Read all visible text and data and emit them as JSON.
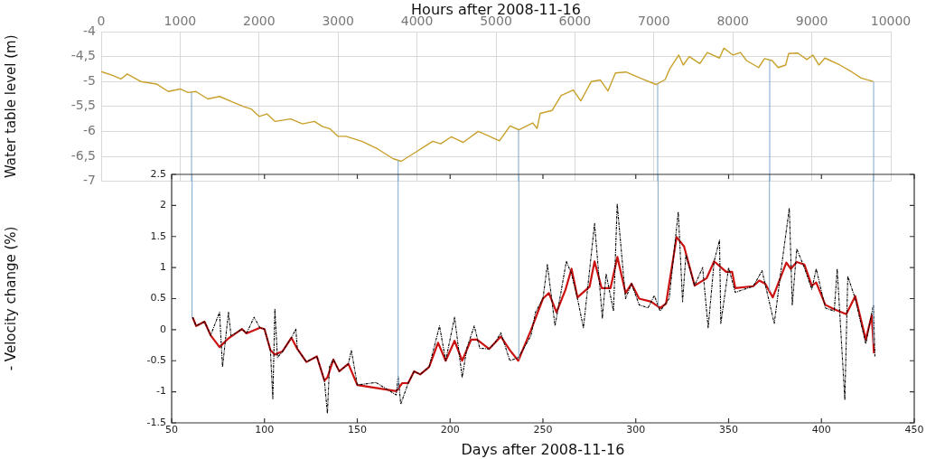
{
  "chart_data": [
    {
      "type": "line",
      "xlabel": "Hours after 2008-11-16",
      "ylabel": "Water table level (m)",
      "xlim": [
        0,
        10000
      ],
      "xticks": [
        0,
        1000,
        2000,
        3000,
        4000,
        5000,
        6000,
        7000,
        8000,
        9000,
        10000
      ],
      "ylim": [
        -7,
        -4
      ],
      "yticks": [
        {
          "value": -7,
          "label": "-7"
        },
        {
          "value": -6.5,
          "label": "-6,5"
        },
        {
          "value": -6,
          "label": "-6"
        },
        {
          "value": -5.5,
          "label": "-5,5"
        },
        {
          "value": -5,
          "label": "-5"
        },
        {
          "value": -4.5,
          "label": "-4,5"
        },
        {
          "value": -4,
          "label": "-4"
        }
      ],
      "grid": true,
      "series": [
        {
          "color": "#c8a02a",
          "x": [
            0,
            150,
            250,
            330,
            500,
            700,
            850,
            1000,
            1100,
            1200,
            1350,
            1500,
            1650,
            1800,
            1900,
            2000,
            2100,
            2200,
            2400,
            2550,
            2700,
            2800,
            2900,
            3000,
            3100,
            3300,
            3500,
            3700,
            3800,
            3900,
            4000,
            4100,
            4200,
            4300,
            4433,
            4586,
            4776,
            4930,
            5044,
            5178,
            5292,
            5464,
            5521,
            5560,
            5712,
            5826,
            5979,
            6074,
            6208,
            6323,
            6418,
            6513,
            6647,
            6838,
            7028,
            7143,
            7200,
            7315,
            7372,
            7448,
            7582,
            7677,
            7830,
            7887,
            8002,
            8097,
            8173,
            8326,
            8402,
            8497,
            8574,
            8669,
            8707,
            8822,
            8937,
            9013,
            9089,
            9166,
            9356,
            9509,
            9624,
            9777
          ],
          "values": [
            -4.8,
            -4.88,
            -4.95,
            -4.85,
            -5.0,
            -5.05,
            -5.2,
            -5.15,
            -5.22,
            -5.2,
            -5.35,
            -5.3,
            -5.4,
            -5.5,
            -5.55,
            -5.7,
            -5.65,
            -5.8,
            -5.75,
            -5.85,
            -5.8,
            -5.9,
            -5.95,
            -6.1,
            -6.1,
            -6.2,
            -6.35,
            -6.55,
            -6.6,
            -6.5,
            -6.4,
            -6.3,
            -6.2,
            -6.25,
            -6.11,
            -6.22,
            -6.0,
            -6.11,
            -6.19,
            -5.89,
            -5.97,
            -5.83,
            -5.94,
            -5.64,
            -5.58,
            -5.28,
            -5.17,
            -5.39,
            -5.0,
            -4.97,
            -5.19,
            -4.83,
            -4.81,
            -4.94,
            -5.06,
            -4.96,
            -4.75,
            -4.47,
            -4.67,
            -4.5,
            -4.64,
            -4.42,
            -4.53,
            -4.33,
            -4.47,
            -4.42,
            -4.58,
            -4.72,
            -4.54,
            -4.58,
            -4.72,
            -4.67,
            -4.44,
            -4.43,
            -4.56,
            -4.47,
            -4.67,
            -4.53,
            -4.67,
            -4.81,
            -4.93,
            -5.0
          ]
        }
      ],
      "ref_lines": [
        {
          "axis": "x",
          "value": 1144,
          "color": "#7fa7c9"
        },
        {
          "axis": "x",
          "value": 3761,
          "color": "#7fa7c9"
        },
        {
          "axis": "x",
          "value": 5286,
          "color": "#7fa7c9"
        },
        {
          "axis": "x",
          "value": 7048,
          "color": "#7fa7c9"
        },
        {
          "axis": "x",
          "value": 8467,
          "color": "#7fa7c9"
        },
        {
          "axis": "x",
          "value": 9783,
          "color": "#7fa7c9"
        }
      ]
    },
    {
      "type": "line",
      "xlabel": "Days after 2008-11-16",
      "ylabel": "- Velocity change (%)",
      "xlim": [
        50,
        450
      ],
      "xticks": [
        50,
        100,
        150,
        200,
        250,
        300,
        350,
        400,
        450
      ],
      "ylim": [
        -1.5,
        2.5
      ],
      "yticks": [
        -1.5,
        -1,
        -0.5,
        0,
        0.5,
        1,
        1.5,
        2,
        2.5
      ],
      "grid": false,
      "series": [
        {
          "color": "#cc1111",
          "line_style": "solid",
          "x": [
            61.3,
            63.2,
            67.7,
            71,
            75.8,
            80.6,
            87.9,
            90.3,
            94.4,
            97.6,
            100,
            103.2,
            105.6,
            109.7,
            114.5,
            117.7,
            122.6,
            128.2,
            132.3,
            133.9,
            137.1,
            140.3,
            145.2,
            150,
            171,
            174.2,
            177.4,
            180.6,
            183.9,
            188.7,
            193.5,
            197.6,
            202.4,
            206.5,
            211.3,
            214.5,
            221,
            224.2,
            227.3,
            232.2,
            236.7,
            243.5,
            250,
            253.2,
            257.3,
            262.1,
            265.4,
            268.6,
            275.1,
            277.8,
            281.6,
            286.4,
            290.1,
            294.5,
            297.7,
            301.8,
            308.3,
            313.1,
            316.3,
            322,
            326,
            331.7,
            338.2,
            342.2,
            348.7,
            351.9,
            353.6,
            363.3,
            366.5,
            369.7,
            373.8,
            381.1,
            383.5,
            386.7,
            390.8,
            394.8,
            397.2,
            402.1,
            406.9,
            413.4,
            418.2,
            423.9,
            427.1,
            428.3
          ],
          "values": [
            0.2,
            0.06,
            0.13,
            -0.09,
            -0.28,
            -0.14,
            0.01,
            -0.06,
            -0.01,
            0.03,
            0.01,
            -0.33,
            -0.4,
            -0.35,
            -0.13,
            -0.31,
            -0.52,
            -0.43,
            -0.82,
            -0.77,
            -0.48,
            -0.67,
            -0.55,
            -0.89,
            -0.99,
            -0.86,
            -0.86,
            -0.67,
            -0.72,
            -0.6,
            -0.21,
            -0.5,
            -0.18,
            -0.5,
            -0.16,
            -0.16,
            -0.31,
            -0.21,
            -0.11,
            -0.33,
            -0.5,
            -0.01,
            0.5,
            0.59,
            0.28,
            0.64,
            0.98,
            0.52,
            0.69,
            1.1,
            0.67,
            0.67,
            1.17,
            0.59,
            0.74,
            0.5,
            0.45,
            0.35,
            0.42,
            1.49,
            1.34,
            0.71,
            0.83,
            1.1,
            0.93,
            0.93,
            0.67,
            0.7,
            0.79,
            0.74,
            0.52,
            1.08,
            0.98,
            1.09,
            1.05,
            0.71,
            0.76,
            0.4,
            0.33,
            0.25,
            0.54,
            -0.16,
            0.23,
            -0.38
          ]
        },
        {
          "color": "#000000",
          "line_style": "dashed",
          "x": [
            61.3,
            63.2,
            67.7,
            71,
            75.8,
            77.4,
            80.6,
            82,
            87.9,
            90.3,
            94.4,
            97.6,
            100,
            103.2,
            104.5,
            105.6,
            107,
            109.7,
            114.5,
            116.9,
            117.7,
            122.6,
            128.2,
            132.3,
            133.9,
            135,
            137.1,
            140.3,
            145.2,
            146.8,
            150,
            160,
            171,
            172,
            173.4,
            177.4,
            180.6,
            183.9,
            188.7,
            194.3,
            197.6,
            202.4,
            206.5,
            209,
            213,
            216,
            221,
            224.2,
            227.3,
            232.2,
            236.7,
            243.5,
            246,
            250,
            252.4,
            256.5,
            262.6,
            265.4,
            268.6,
            271.8,
            277.8,
            282,
            284,
            288,
            290,
            294.5,
            297.7,
            301.8,
            306.6,
            310,
            313.1,
            318,
            322.9,
            325.2,
            327,
            331.7,
            336,
            339,
            342.2,
            345.1,
            345.8,
            350,
            353.6,
            363.3,
            368,
            374.6,
            378,
            382.7,
            384.3,
            386.7,
            390.8,
            394.8,
            397.2,
            402.1,
            406.9,
            408.5,
            412.6,
            414.2,
            418.2,
            423.9,
            426,
            428,
            428.8
          ],
          "values": [
            0.2,
            0.06,
            0.13,
            -0.09,
            0.28,
            -0.6,
            0.28,
            -0.1,
            0.01,
            -0.06,
            0.2,
            0.03,
            0.01,
            -0.33,
            -1.11,
            0.33,
            -0.45,
            -0.35,
            -0.13,
            0.01,
            -0.31,
            -0.52,
            -0.43,
            -0.82,
            -1.35,
            -0.6,
            -0.48,
            -0.67,
            -0.55,
            -0.33,
            -0.89,
            -0.85,
            -1.05,
            -0.75,
            -1.2,
            -0.86,
            -0.67,
            -0.72,
            -0.6,
            0.06,
            -0.5,
            0.2,
            -0.77,
            -0.3,
            0.06,
            -0.3,
            -0.31,
            -0.21,
            -0.05,
            -0.5,
            -0.45,
            -0.1,
            0.28,
            0.5,
            1.05,
            0.06,
            1.1,
            0.9,
            0.5,
            0.03,
            1.71,
            0.18,
            0.9,
            0.3,
            2.02,
            0.5,
            0.74,
            0.4,
            0.35,
            0.55,
            0.3,
            0.5,
            1.9,
            0.45,
            1.2,
            0.71,
            1.0,
            0.03,
            1.1,
            1.44,
            0.1,
            1.0,
            0.6,
            0.7,
            0.95,
            0.1,
            0.9,
            1.96,
            0.4,
            1.3,
            1.0,
            0.65,
            0.98,
            0.35,
            0.3,
            0.98,
            -1.13,
            0.86,
            0.5,
            -0.23,
            0.1,
            0.4,
            -0.43
          ]
        }
      ],
      "ref_lines": [
        {
          "axis": "x",
          "value": 61,
          "color": "#7fa7c9"
        },
        {
          "axis": "x",
          "value": 172,
          "color": "#7fa7c9"
        },
        {
          "axis": "x",
          "value": 237,
          "color": "#7fa7c9"
        },
        {
          "axis": "x",
          "value": 312,
          "color": "#7fa7c9"
        },
        {
          "axis": "x",
          "value": 372,
          "color": "#7fa7c9"
        },
        {
          "axis": "x",
          "value": 428,
          "color": "#7fa7c9"
        }
      ]
    }
  ]
}
